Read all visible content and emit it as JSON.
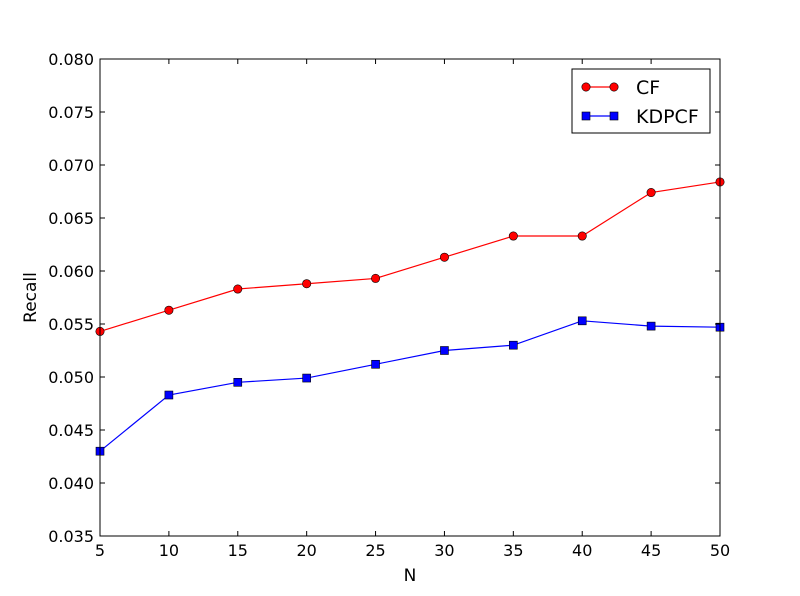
{
  "chart_data": {
    "type": "line",
    "title": "",
    "xlabel": "N",
    "ylabel": "Recall",
    "xlim": [
      5,
      50
    ],
    "ylim": [
      0.035,
      0.08
    ],
    "x": [
      5,
      10,
      15,
      20,
      25,
      30,
      35,
      40,
      45,
      50
    ],
    "x_ticks": [
      "5",
      "10",
      "15",
      "20",
      "25",
      "30",
      "35",
      "40",
      "45",
      "50"
    ],
    "y_ticks": [
      "0.035",
      "0.040",
      "0.045",
      "0.050",
      "0.055",
      "0.060",
      "0.065",
      "0.070",
      "0.075",
      "0.080"
    ],
    "grid": false,
    "legend_position": "top-right",
    "series": [
      {
        "name": "CF",
        "color": "#ff0000",
        "marker": "circle",
        "values": [
          0.0543,
          0.0563,
          0.0583,
          0.0588,
          0.0593,
          0.0613,
          0.0633,
          0.0633,
          0.0674,
          0.0684
        ]
      },
      {
        "name": "KDPCF",
        "color": "#0000ff",
        "marker": "square",
        "values": [
          0.043,
          0.0483,
          0.0495,
          0.0499,
          0.0512,
          0.0525,
          0.053,
          0.0553,
          0.0548,
          0.0547
        ]
      }
    ]
  }
}
